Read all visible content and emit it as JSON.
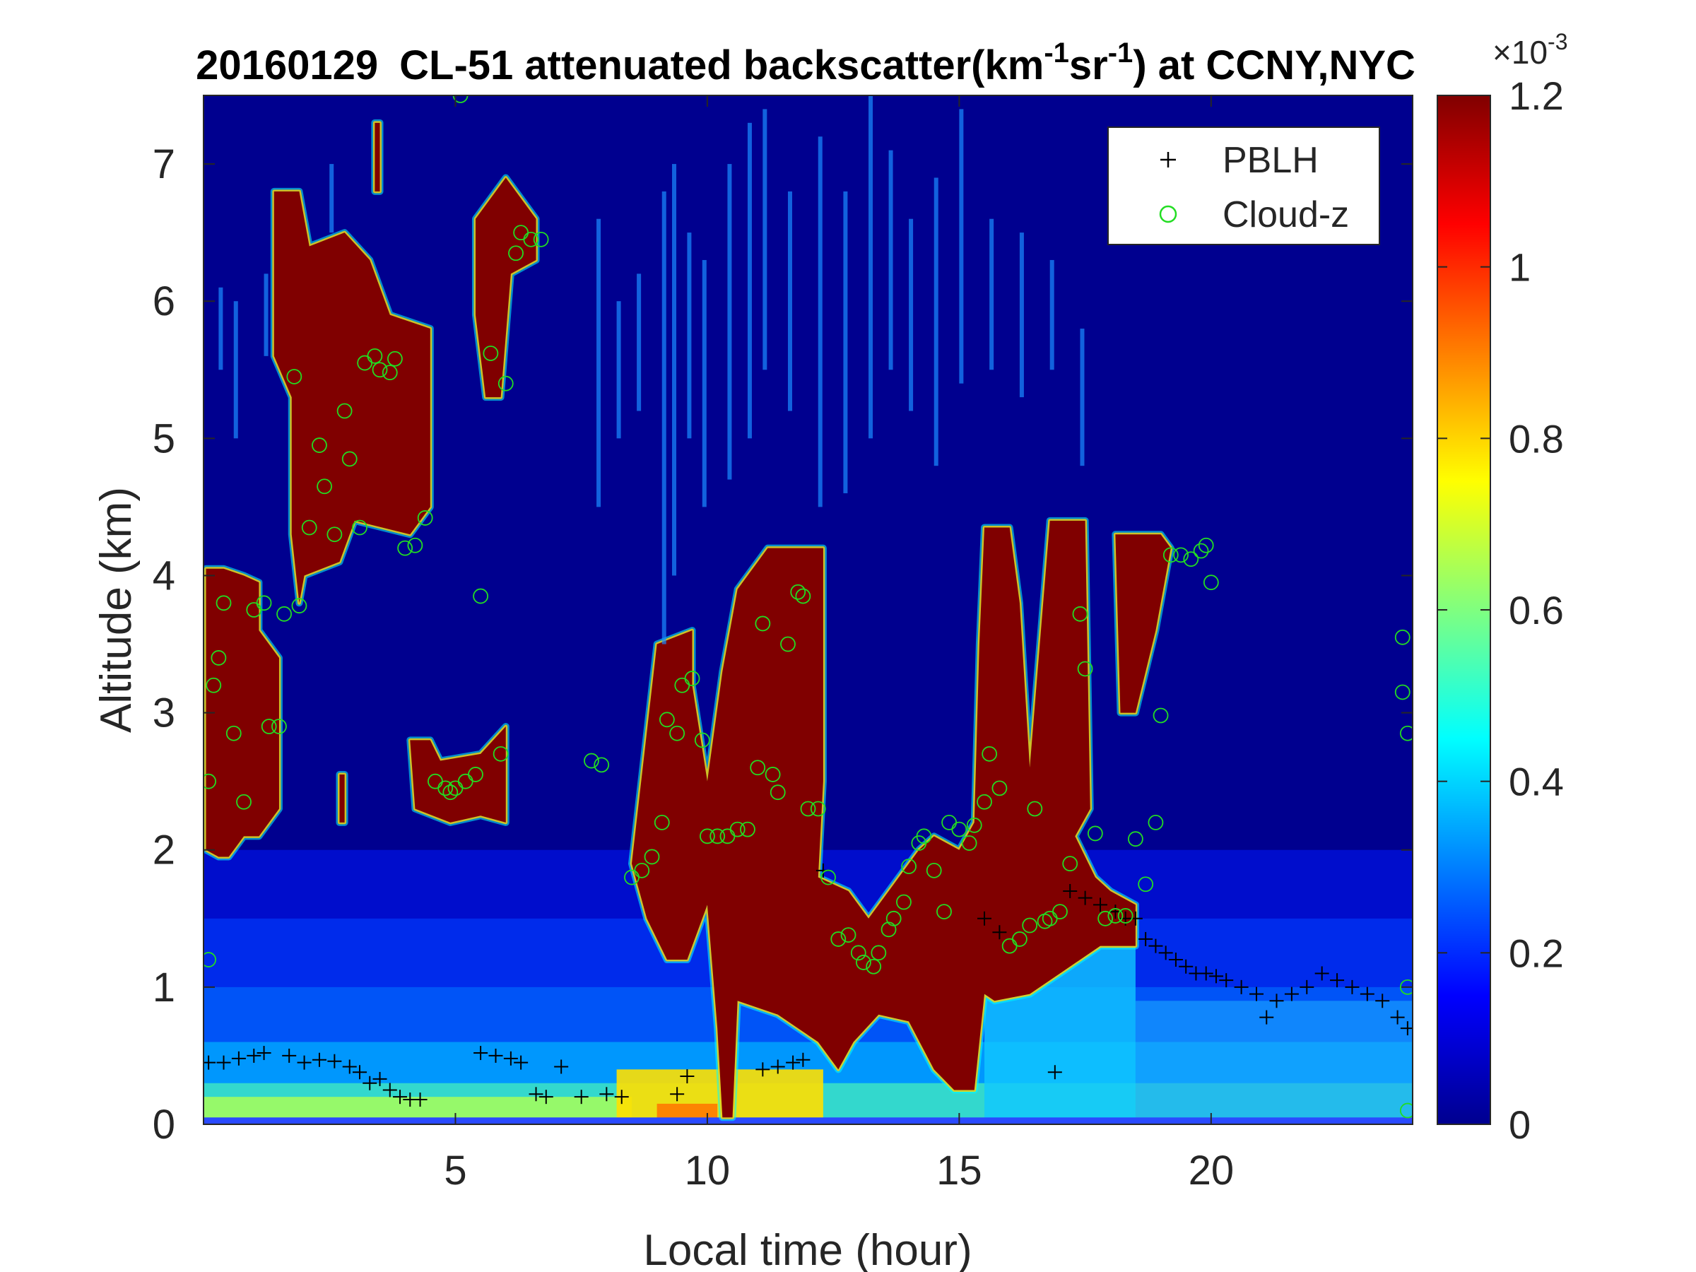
{
  "chart_data": {
    "type": "heatmap",
    "title": {
      "date": "20160129",
      "prefix": "CL-51 attenuated backscatter(km",
      "sup1": "-1",
      "mid": "sr",
      "sup2": "-1",
      "suffix": ") at CCNY,NYC"
    },
    "xlabel": "Local time (hour)",
    "ylabel": "Altitude (km)",
    "xlim": [
      0,
      24
    ],
    "ylim": [
      0,
      7.5
    ],
    "xticks": [
      5,
      10,
      15,
      20
    ],
    "yticks": [
      0,
      1,
      2,
      3,
      4,
      5,
      6,
      7
    ],
    "colorbar": {
      "colormap": "jet",
      "clim": [
        0,
        1.2
      ],
      "ticks": [
        0,
        0.2,
        0.4,
        0.6,
        0.8,
        1,
        1.2
      ],
      "exponent_label": "×10",
      "exponent": "-3"
    },
    "legend": {
      "placement": "top-right",
      "entries": [
        {
          "name": "PBLH",
          "marker": "+",
          "color": "#000000"
        },
        {
          "name": "Cloud-z",
          "marker": "o",
          "color": "#22dd22"
        }
      ]
    },
    "series": [
      {
        "name": "PBLH",
        "points": [
          [
            0.1,
            0.45
          ],
          [
            0.4,
            0.45
          ],
          [
            0.7,
            0.48
          ],
          [
            1.0,
            0.5
          ],
          [
            1.2,
            0.52
          ],
          [
            1.7,
            0.5
          ],
          [
            2.0,
            0.45
          ],
          [
            2.3,
            0.47
          ],
          [
            2.6,
            0.46
          ],
          [
            2.9,
            0.42
          ],
          [
            3.1,
            0.38
          ],
          [
            3.3,
            0.3
          ],
          [
            3.5,
            0.33
          ],
          [
            3.7,
            0.25
          ],
          [
            3.9,
            0.2
          ],
          [
            4.1,
            0.18
          ],
          [
            4.3,
            0.18
          ],
          [
            5.5,
            0.52
          ],
          [
            5.8,
            0.5
          ],
          [
            6.1,
            0.48
          ],
          [
            6.3,
            0.45
          ],
          [
            6.6,
            0.22
          ],
          [
            6.8,
            0.2
          ],
          [
            7.1,
            0.42
          ],
          [
            7.5,
            0.2
          ],
          [
            8.0,
            0.22
          ],
          [
            8.3,
            0.2
          ],
          [
            9.4,
            0.22
          ],
          [
            9.6,
            0.35
          ],
          [
            11.1,
            0.4
          ],
          [
            11.4,
            0.42
          ],
          [
            11.7,
            0.45
          ],
          [
            11.9,
            0.47
          ],
          [
            12.3,
            1.85
          ],
          [
            15.5,
            1.5
          ],
          [
            15.8,
            1.4
          ],
          [
            16.9,
            0.38
          ],
          [
            17.2,
            1.7
          ],
          [
            17.5,
            1.65
          ],
          [
            17.8,
            1.6
          ],
          [
            18.1,
            1.55
          ],
          [
            18.3,
            1.5
          ],
          [
            18.5,
            1.5
          ],
          [
            18.7,
            1.35
          ],
          [
            18.9,
            1.3
          ],
          [
            19.1,
            1.25
          ],
          [
            19.3,
            1.2
          ],
          [
            19.5,
            1.15
          ],
          [
            19.7,
            1.1
          ],
          [
            19.9,
            1.1
          ],
          [
            20.1,
            1.08
          ],
          [
            20.3,
            1.05
          ],
          [
            20.6,
            1.0
          ],
          [
            20.9,
            0.95
          ],
          [
            21.1,
            0.78
          ],
          [
            21.3,
            0.9
          ],
          [
            21.6,
            0.95
          ],
          [
            21.9,
            1.0
          ],
          [
            22.2,
            1.1
          ],
          [
            22.5,
            1.05
          ],
          [
            22.8,
            1.0
          ],
          [
            23.1,
            0.95
          ],
          [
            23.4,
            0.9
          ],
          [
            23.7,
            0.78
          ],
          [
            23.9,
            0.7
          ]
        ]
      },
      {
        "name": "Cloud-z",
        "points": [
          [
            0.1,
            1.2
          ],
          [
            0.1,
            2.5
          ],
          [
            0.2,
            3.2
          ],
          [
            0.3,
            3.4
          ],
          [
            0.4,
            3.8
          ],
          [
            0.6,
            2.85
          ],
          [
            0.8,
            2.35
          ],
          [
            1.0,
            3.75
          ],
          [
            1.2,
            3.8
          ],
          [
            1.3,
            2.9
          ],
          [
            1.5,
            2.9
          ],
          [
            1.6,
            3.72
          ],
          [
            1.8,
            5.45
          ],
          [
            1.9,
            3.78
          ],
          [
            2.1,
            4.35
          ],
          [
            2.3,
            4.95
          ],
          [
            2.4,
            4.65
          ],
          [
            2.6,
            4.3
          ],
          [
            2.8,
            5.2
          ],
          [
            2.9,
            4.85
          ],
          [
            3.1,
            4.35
          ],
          [
            3.2,
            5.55
          ],
          [
            3.4,
            5.6
          ],
          [
            3.5,
            5.5
          ],
          [
            3.7,
            5.48
          ],
          [
            3.8,
            5.58
          ],
          [
            4.0,
            4.2
          ],
          [
            4.2,
            4.22
          ],
          [
            4.4,
            4.42
          ],
          [
            4.6,
            2.5
          ],
          [
            4.8,
            2.45
          ],
          [
            4.9,
            2.42
          ],
          [
            5.0,
            2.45
          ],
          [
            5.1,
            7.5
          ],
          [
            5.2,
            2.5
          ],
          [
            5.4,
            2.55
          ],
          [
            5.5,
            3.85
          ],
          [
            5.7,
            5.62
          ],
          [
            5.9,
            2.7
          ],
          [
            6.0,
            5.4
          ],
          [
            6.2,
            6.35
          ],
          [
            6.3,
            6.5
          ],
          [
            6.5,
            6.45
          ],
          [
            6.7,
            6.45
          ],
          [
            7.7,
            2.65
          ],
          [
            7.9,
            2.62
          ],
          [
            8.5,
            1.8
          ],
          [
            8.7,
            1.85
          ],
          [
            8.9,
            1.95
          ],
          [
            9.1,
            2.2
          ],
          [
            9.2,
            2.95
          ],
          [
            9.4,
            2.85
          ],
          [
            9.5,
            3.2
          ],
          [
            9.7,
            3.25
          ],
          [
            9.9,
            2.8
          ],
          [
            10.0,
            2.1
          ],
          [
            10.2,
            2.1
          ],
          [
            10.4,
            2.1
          ],
          [
            10.6,
            2.15
          ],
          [
            10.8,
            2.15
          ],
          [
            11.0,
            2.6
          ],
          [
            11.1,
            3.65
          ],
          [
            11.3,
            2.55
          ],
          [
            11.4,
            2.42
          ],
          [
            11.6,
            3.5
          ],
          [
            11.8,
            3.88
          ],
          [
            11.9,
            3.85
          ],
          [
            12.0,
            2.3
          ],
          [
            12.2,
            2.3
          ],
          [
            12.4,
            1.8
          ],
          [
            12.6,
            1.35
          ],
          [
            12.8,
            1.38
          ],
          [
            13.0,
            1.25
          ],
          [
            13.1,
            1.18
          ],
          [
            13.3,
            1.15
          ],
          [
            13.4,
            1.25
          ],
          [
            13.6,
            1.42
          ],
          [
            13.7,
            1.5
          ],
          [
            13.9,
            1.62
          ],
          [
            14.0,
            1.88
          ],
          [
            14.2,
            2.05
          ],
          [
            14.3,
            2.1
          ],
          [
            14.5,
            1.85
          ],
          [
            14.7,
            1.55
          ],
          [
            14.8,
            2.2
          ],
          [
            15.0,
            2.15
          ],
          [
            15.2,
            2.05
          ],
          [
            15.3,
            2.18
          ],
          [
            15.5,
            2.35
          ],
          [
            15.6,
            2.7
          ],
          [
            15.8,
            2.45
          ],
          [
            16.0,
            1.3
          ],
          [
            16.2,
            1.35
          ],
          [
            16.4,
            1.45
          ],
          [
            16.5,
            2.3
          ],
          [
            16.7,
            1.48
          ],
          [
            16.8,
            1.5
          ],
          [
            17.0,
            1.55
          ],
          [
            17.2,
            1.9
          ],
          [
            17.4,
            3.72
          ],
          [
            17.5,
            3.32
          ],
          [
            17.7,
            2.12
          ],
          [
            17.9,
            1.5
          ],
          [
            18.1,
            1.52
          ],
          [
            18.3,
            1.52
          ],
          [
            18.5,
            2.08
          ],
          [
            18.7,
            1.75
          ],
          [
            18.9,
            2.2
          ],
          [
            19.0,
            2.98
          ],
          [
            19.2,
            4.15
          ],
          [
            19.4,
            4.15
          ],
          [
            19.6,
            4.12
          ],
          [
            19.8,
            4.18
          ],
          [
            19.9,
            4.22
          ],
          [
            20.0,
            3.95
          ],
          [
            23.8,
            3.55
          ],
          [
            23.8,
            3.15
          ],
          [
            23.9,
            2.85
          ],
          [
            23.9,
            1.0
          ],
          [
            23.9,
            0.1
          ]
        ]
      }
    ]
  }
}
